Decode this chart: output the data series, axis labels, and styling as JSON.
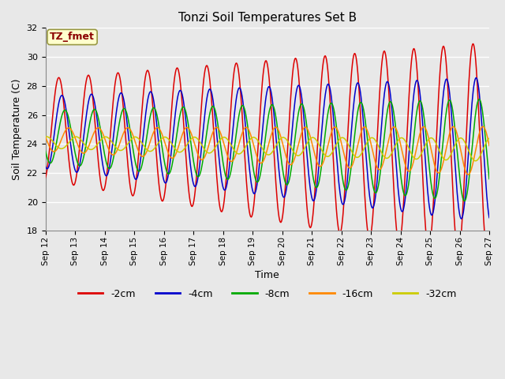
{
  "title": "Tonzi Soil Temperatures Set B",
  "xlabel": "Time",
  "ylabel": "Soil Temperature (C)",
  "annotation": "TZ_fmet",
  "annotation_color": "#8B0000",
  "annotation_bg": "#FFFFCC",
  "annotation_edge": "#999944",
  "ylim": [
    18,
    32
  ],
  "xlim": [
    0,
    360
  ],
  "yticks": [
    18,
    20,
    22,
    24,
    26,
    28,
    30,
    32
  ],
  "xtick_labels": [
    "Sep 12",
    "Sep 13",
    "Sep 14",
    "Sep 15",
    "Sep 16",
    "Sep 17",
    "Sep 18",
    "Sep 19",
    "Sep 20",
    "Sep 21",
    "Sep 22",
    "Sep 23",
    "Sep 24",
    "Sep 25",
    "Sep 26",
    "Sep 27"
  ],
  "xtick_positions": [
    0,
    24,
    48,
    72,
    96,
    120,
    144,
    168,
    192,
    216,
    240,
    264,
    288,
    312,
    336,
    360
  ],
  "legend_labels": [
    "-2cm",
    "-4cm",
    "-8cm",
    "-16cm",
    "-32cm"
  ],
  "line_colors": [
    "#DD0000",
    "#0000CC",
    "#00AA00",
    "#FF8800",
    "#CCCC00"
  ],
  "plot_bg": "#E8E8E8",
  "grid_color": "#FFFFFF",
  "fig_bg": "#E8E8E8"
}
